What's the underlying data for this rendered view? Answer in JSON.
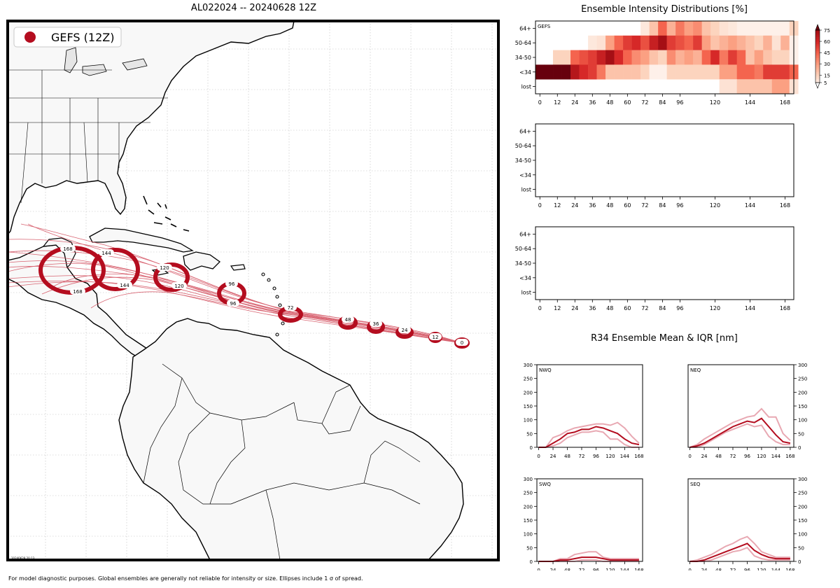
{
  "title": "AL022024 -- 20240628 12Z",
  "footnote": "For model diagnostic purposes. Global ensembles are generally not reliable for intensity or size. Ellipses include 1 σ of spread.",
  "map": {
    "legend_label": "GEFS (12Z)",
    "stamp": "20240628 20:13",
    "track_color": "#b40d1f",
    "forecast_hours": [
      "0",
      "12",
      "24",
      "36",
      "48",
      "72",
      "96",
      "96",
      "120",
      "120",
      "144",
      "144",
      "168",
      "168"
    ]
  },
  "intensity": {
    "title": "Ensemble Intensity Distributions [%]",
    "panel_labels": [
      "GEFS",
      "",
      ""
    ],
    "y_categories": [
      "64+",
      "50-64",
      "34-50",
      "<34",
      "lost"
    ],
    "x_ticks": [
      "0",
      "12",
      "24",
      "36",
      "48",
      "60",
      "72",
      "84",
      "96",
      "120",
      "144",
      "168"
    ],
    "colorbar_ticks": [
      "75",
      "60",
      "45",
      "30",
      "15",
      "5"
    ]
  },
  "r34": {
    "title": "R34 Ensemble Mean & IQR [nm]",
    "x_ticks": [
      "0",
      "24",
      "48",
      "72",
      "96",
      "120",
      "144",
      "168"
    ],
    "y_ticks": [
      "300",
      "250",
      "200",
      "150",
      "100",
      "50",
      "0"
    ],
    "quadrants": [
      "NWQ",
      "NEQ",
      "SWQ",
      "SEQ"
    ]
  },
  "chart_data": [
    {
      "type": "heatmap",
      "title": "Ensemble Intensity Distributions [%]",
      "panel": "GEFS",
      "x": [
        0,
        6,
        12,
        18,
        24,
        30,
        36,
        42,
        48,
        54,
        60,
        66,
        72,
        78,
        84,
        90,
        96,
        102,
        108,
        114,
        120,
        126,
        132,
        138,
        144,
        150,
        156,
        162,
        168,
        174
      ],
      "y_categories": [
        "64+",
        "50-64",
        "34-50",
        "<34",
        "lost"
      ],
      "values_percent": [
        [
          0,
          0,
          0,
          0,
          0,
          0,
          0,
          0,
          0,
          0,
          0,
          0,
          8,
          20,
          45,
          25,
          40,
          30,
          35,
          20,
          15,
          10,
          8,
          5,
          5,
          5,
          5,
          5,
          5,
          15
        ],
        [
          0,
          0,
          0,
          0,
          0,
          0,
          8,
          10,
          30,
          45,
          55,
          60,
          50,
          65,
          75,
          55,
          50,
          45,
          55,
          30,
          20,
          25,
          30,
          25,
          20,
          15,
          25,
          10,
          25,
          5
        ],
        [
          0,
          0,
          15,
          15,
          45,
          50,
          55,
          65,
          75,
          60,
          45,
          35,
          30,
          20,
          15,
          35,
          25,
          30,
          25,
          45,
          60,
          40,
          55,
          45,
          20,
          30,
          20,
          15,
          15,
          5
        ],
        [
          90,
          90,
          90,
          90,
          70,
          60,
          55,
          40,
          20,
          20,
          20,
          20,
          15,
          5,
          5,
          15,
          15,
          15,
          15,
          15,
          15,
          30,
          30,
          45,
          45,
          40,
          55,
          55,
          55,
          45
        ],
        [
          0,
          0,
          0,
          0,
          0,
          0,
          0,
          0,
          0,
          0,
          0,
          0,
          0,
          0,
          0,
          0,
          0,
          0,
          0,
          0,
          0,
          10,
          10,
          20,
          20,
          20,
          20,
          30,
          30,
          10
        ]
      ],
      "colorbar_range": [
        5,
        75
      ]
    },
    {
      "type": "line",
      "panel": "NWQ",
      "x": [
        0,
        12,
        24,
        36,
        48,
        60,
        72,
        84,
        96,
        108,
        120,
        132,
        144,
        156,
        168
      ],
      "mean": [
        0,
        0,
        15,
        30,
        50,
        55,
        65,
        65,
        75,
        70,
        60,
        50,
        30,
        15,
        10
      ],
      "q25": [
        0,
        0,
        5,
        15,
        35,
        45,
        55,
        55,
        60,
        55,
        30,
        30,
        10,
        0,
        0
      ],
      "q75": [
        0,
        0,
        35,
        45,
        60,
        70,
        75,
        80,
        85,
        85,
        80,
        90,
        70,
        40,
        15
      ],
      "ylim": [
        0,
        300
      ]
    },
    {
      "type": "line",
      "panel": "NEQ",
      "x": [
        0,
        12,
        24,
        36,
        48,
        60,
        72,
        84,
        96,
        108,
        120,
        132,
        144,
        156,
        168
      ],
      "mean": [
        0,
        5,
        15,
        30,
        45,
        60,
        75,
        85,
        95,
        90,
        105,
        75,
        45,
        20,
        15
      ],
      "q25": [
        0,
        0,
        10,
        25,
        40,
        55,
        65,
        75,
        85,
        75,
        80,
        40,
        20,
        10,
        10
      ],
      "q75": [
        0,
        10,
        30,
        45,
        60,
        75,
        90,
        100,
        110,
        115,
        140,
        110,
        110,
        50,
        25
      ],
      "ylim": [
        0,
        300
      ]
    },
    {
      "type": "line",
      "panel": "SWQ",
      "x": [
        0,
        12,
        24,
        36,
        48,
        60,
        72,
        84,
        96,
        108,
        120,
        132,
        144,
        156,
        168
      ],
      "mean": [
        0,
        0,
        0,
        5,
        5,
        10,
        15,
        15,
        15,
        10,
        5,
        5,
        5,
        5,
        5
      ],
      "q25": [
        0,
        0,
        0,
        0,
        0,
        0,
        5,
        5,
        5,
        0,
        0,
        0,
        0,
        0,
        0
      ],
      "q75": [
        0,
        0,
        0,
        10,
        10,
        25,
        30,
        35,
        35,
        15,
        10,
        10,
        10,
        10,
        10
      ],
      "ylim": [
        0,
        300
      ]
    },
    {
      "type": "line",
      "panel": "SEQ",
      "x": [
        0,
        12,
        24,
        36,
        48,
        60,
        72,
        84,
        96,
        108,
        120,
        132,
        144,
        156,
        168
      ],
      "mean": [
        0,
        0,
        5,
        15,
        25,
        35,
        45,
        55,
        65,
        40,
        25,
        15,
        10,
        10,
        10
      ],
      "q25": [
        0,
        0,
        0,
        5,
        15,
        25,
        35,
        40,
        50,
        20,
        10,
        5,
        5,
        5,
        5
      ],
      "q75": [
        0,
        5,
        15,
        25,
        40,
        55,
        65,
        80,
        90,
        65,
        35,
        25,
        15,
        15,
        15
      ],
      "ylim": [
        0,
        300
      ]
    }
  ]
}
